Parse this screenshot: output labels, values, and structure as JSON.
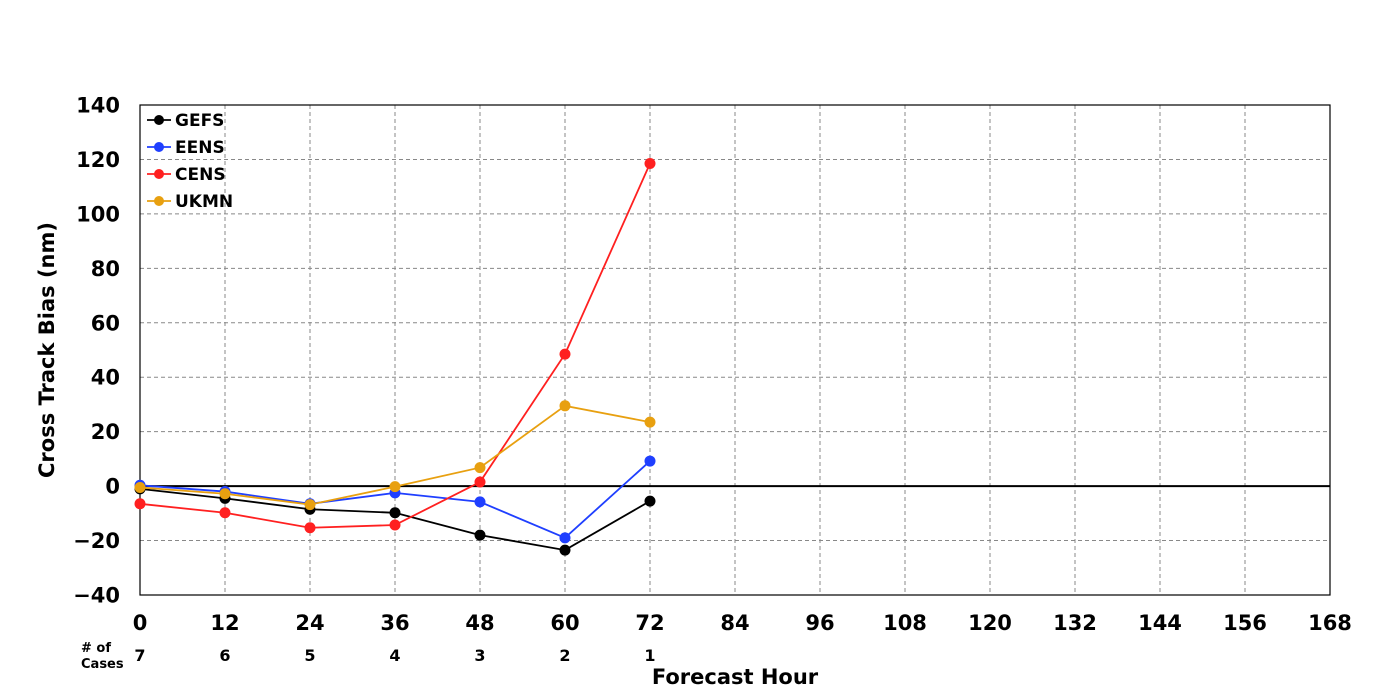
{
  "chart_data": {
    "type": "line",
    "title": "",
    "xlabel": "Forecast Hour",
    "ylabel": "Cross Track Bias (nm)",
    "x": [
      0,
      12,
      24,
      36,
      48,
      60,
      72
    ],
    "xlim": [
      0,
      168
    ],
    "ylim": [
      -40,
      140
    ],
    "xticks": [
      "0",
      "12",
      "24",
      "36",
      "48",
      "60",
      "72",
      "84",
      "96",
      "108",
      "120",
      "132",
      "144",
      "156",
      "168"
    ],
    "yticks": [
      "140",
      "120",
      "100",
      "80",
      "60",
      "40",
      "20",
      "0",
      "−20",
      "−40"
    ],
    "grid": true,
    "legend_position": "top-left",
    "cases_label_line1": "# of",
    "cases_label_line2": "Cases",
    "cases": [
      "7",
      "6",
      "5",
      "4",
      "3",
      "2",
      "1"
    ],
    "series": [
      {
        "name": "GEFS",
        "color": "#000000",
        "values": [
          -1,
          -4.5,
          -8.5,
          -9.8,
          -18,
          -23.5,
          -5.5
        ]
      },
      {
        "name": "EENS",
        "color": "#1f3fff",
        "values": [
          0.3,
          -2,
          -6.5,
          -2.5,
          -5.8,
          -19,
          9.2
        ]
      },
      {
        "name": "CENS",
        "color": "#ff2020",
        "values": [
          -6.5,
          -9.8,
          -15.3,
          -14.3,
          1.5,
          48.5,
          118.5
        ]
      },
      {
        "name": "UKMN",
        "color": "#e8a010",
        "values": [
          -0.5,
          -2.8,
          -6.8,
          -0.2,
          6.8,
          29.5,
          23.5
        ]
      }
    ]
  }
}
